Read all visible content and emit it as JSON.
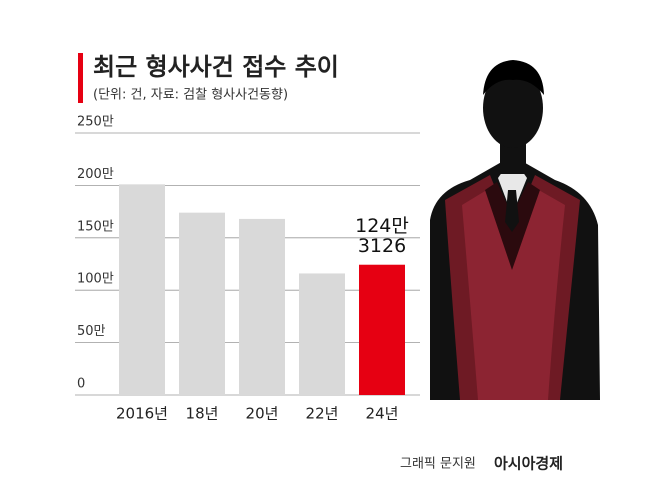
{
  "chart_data": {
    "type": "bar",
    "title": "최근 형사사건 접수 추이",
    "subtitle": "(단위: 건, 자료: 검찰 형사사건동향)",
    "categories": [
      "2016년",
      "18년",
      "20년",
      "22년",
      "24년"
    ],
    "values": [
      201,
      174,
      168,
      116,
      124.3126
    ],
    "value_labels": [
      null,
      null,
      null,
      null,
      [
        "124만",
        "3126"
      ]
    ],
    "colors": [
      "#d9d9d9",
      "#d9d9d9",
      "#d9d9d9",
      "#d9d9d9",
      "#e60012"
    ],
    "ylim": [
      0,
      250
    ],
    "yticks": [
      0,
      {
        "value": 50,
        "label": "50만"
      },
      {
        "value": 100,
        "label": "100만"
      },
      {
        "value": 150,
        "label": "150만"
      },
      {
        "value": 200,
        "label": "200만"
      },
      {
        "value": 250,
        "label": "250만"
      }
    ],
    "grid": true,
    "credit": "그래픽 문지원",
    "publisher": "아시아경제"
  }
}
